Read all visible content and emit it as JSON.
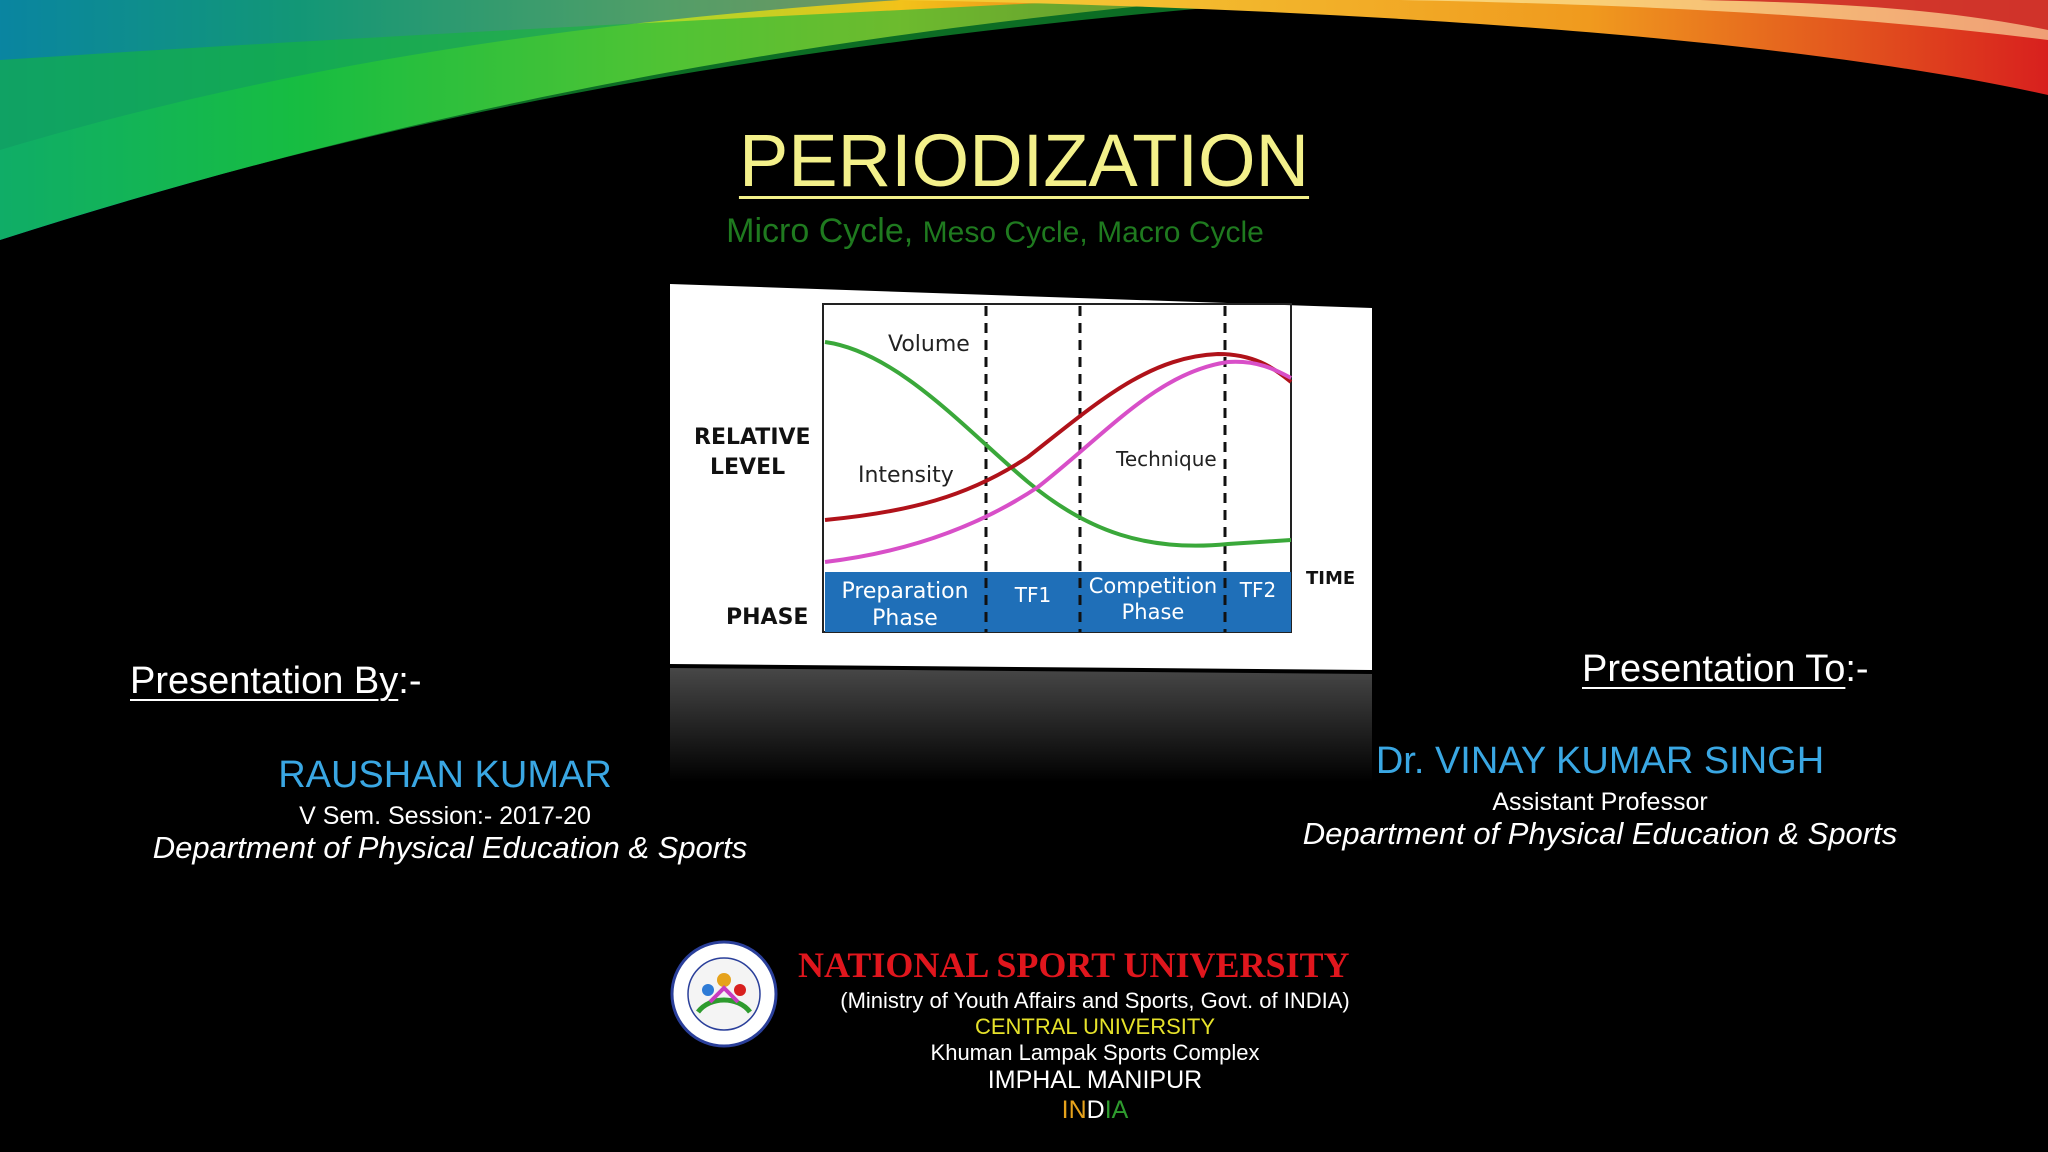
{
  "title": "PERIODIZATION",
  "subtitle": {
    "part1": "Micro Cycle,",
    "part2": "Meso Cycle,",
    "part3": "Macro Cycle"
  },
  "chart": {
    "y_label_1": "RELATIVE",
    "y_label_2": "LEVEL",
    "phase_label": "PHASE",
    "time_label": "TIME",
    "curve_labels": {
      "volume": "Volume",
      "intensity": "Intensity",
      "technique": "Technique"
    },
    "phases": {
      "prep_1": "Preparation",
      "prep_2": "Phase",
      "tf1": "TF1",
      "comp_1": "Competition",
      "comp_2": "Phase",
      "tf2": "TF2"
    },
    "colors": {
      "volume": "#3aa83a",
      "intensity": "#b0121a",
      "technique": "#d84fc8",
      "phase_bar": "#1f6fb8"
    }
  },
  "presenter": {
    "heading": "Presentation By",
    "heading_suffix": ":-",
    "name": "RAUSHAN  KUMAR",
    "detail": "V  Sem.  Session:- 2017-20",
    "department": "Department of Physical Education & Sports"
  },
  "recipient": {
    "heading": "Presentation To",
    "heading_suffix": ":-",
    "name": "Dr. VINAY KUMAR SINGH",
    "role": "Assistant Professor",
    "department": "Department of Physical Education  & Sports"
  },
  "university": {
    "name": "NATIONAL SPORT UNIVERSITY",
    "ministry": "(Ministry of Youth Affairs and Sports, Govt. of INDIA)",
    "type": "CENTRAL UNIVERSITY",
    "complex": "Khuman Lampak Sports Complex",
    "city": "IMPHAL MANIPUR",
    "country_parts": [
      "IN",
      "D",
      "IA"
    ],
    "country_colors": [
      "#e6a21b",
      "#ffffff",
      "#2e9b2e"
    ],
    "logo_icon": "university-seal"
  }
}
